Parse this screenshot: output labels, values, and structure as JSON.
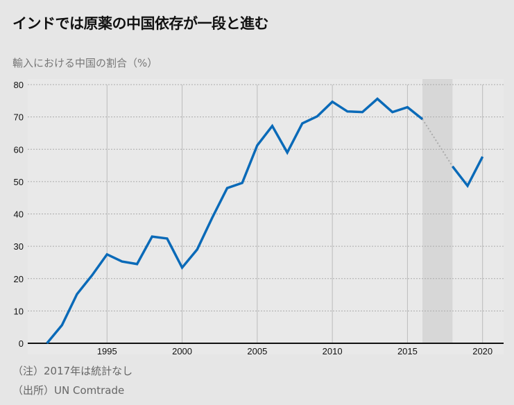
{
  "chart_data": {
    "type": "line",
    "title": "インドでは原薬の中国依存が一段と進む",
    "ylabel": "輸入における中国の割合（%）",
    "xlabel": "",
    "xlim": [
      1990,
      2021.4
    ],
    "ylim": [
      0,
      80
    ],
    "yticks": [
      0,
      10,
      20,
      30,
      40,
      50,
      60,
      70,
      80
    ],
    "xticks": [
      1995,
      2000,
      2005,
      2010,
      2015,
      2020
    ],
    "grid": true,
    "shaded_range": [
      2016,
      2018
    ],
    "series": [
      {
        "name": "中国の割合",
        "color": "#0a6ab8",
        "x": [
          1991,
          1992,
          1993,
          1994,
          1995,
          1996,
          1997,
          1998,
          1999,
          2000,
          2001,
          2002,
          2003,
          2004,
          2005,
          2006,
          2007,
          2008,
          2009,
          2010,
          2011,
          2012,
          2013,
          2014,
          2015,
          2016,
          2018,
          2019,
          2020
        ],
        "values": [
          0,
          5.6,
          15.2,
          21,
          27.5,
          25.3,
          24.5,
          33,
          32.4,
          23.4,
          29,
          38.8,
          48,
          49.6,
          61.2,
          67.2,
          59,
          68,
          70.2,
          74.7,
          71.7,
          71.5,
          75.6,
          71.5,
          73,
          69.3,
          54.7,
          48.7,
          57.7
        ]
      }
    ],
    "gap": {
      "from": 2016,
      "to": 2018,
      "style": "dotted",
      "color": "#aaaaaa"
    },
    "notes": [
      "（注）2017年は統計なし",
      "（出所）UN Comtrade"
    ]
  }
}
